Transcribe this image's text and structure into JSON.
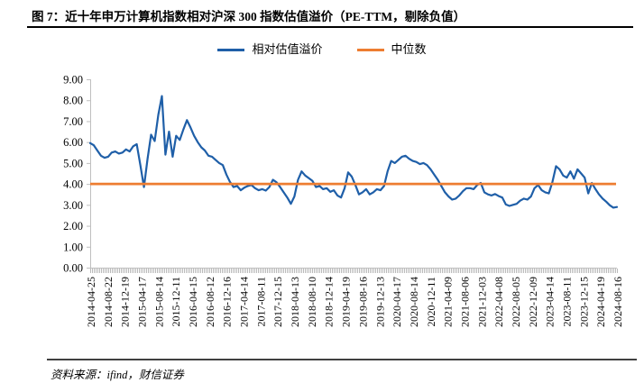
{
  "figure": {
    "title": "图 7：近十年申万计算机指数相对沪深 300 指数估值溢价（PE-TTM，剔除负值）",
    "source_note": "资料来源：ifind，财信证券"
  },
  "legend": [
    {
      "label": "相对估值溢价",
      "color": "#1F5FA8"
    },
    {
      "label": "中位数",
      "color": "#ED7D31"
    }
  ],
  "colors": {
    "series_blue": "#1F5FA8",
    "median_orange": "#ED7D31",
    "axis_gray": "#BFBFBF",
    "minor_tick_gray": "#B3B3B3",
    "text_black": "#000000"
  },
  "chart_data": {
    "type": "line",
    "title": "近十年申万计算机指数相对沪深300指数估值溢价（PE-TTM，剔除负值）",
    "xlabel": "",
    "ylabel": "",
    "ylim": [
      0,
      9
    ],
    "grid": false,
    "legend_position": "top",
    "y_tick_labels": [
      "0.00",
      "1.00",
      "2.00",
      "3.00",
      "4.00",
      "5.00",
      "6.00",
      "7.00",
      "8.00",
      "9.00"
    ],
    "x_tick_labels": [
      "2014-04-25",
      "2014-08-22",
      "2014-12-19",
      "2015-04-17",
      "2015-08-14",
      "2015-12-11",
      "2016-04-15",
      "2016-08-12",
      "2016-12-16",
      "2017-04-14",
      "2017-08-11",
      "2017-12-15",
      "2018-04-13",
      "2018-08-10",
      "2018-12-14",
      "2019-04-19",
      "2019-08-16",
      "2019-12-13",
      "2020-04-17",
      "2020-08-14",
      "2020-12-11",
      "2021-04-09",
      "2021-08-06",
      "2021-12-03",
      "2022-04-08",
      "2022-08-05",
      "2022-12-09",
      "2023-04-14",
      "2023-08-11",
      "2023-12-15",
      "2024-04-19",
      "2024-08-16"
    ],
    "x_label_rotation": -90,
    "median_value": 4.0,
    "series": [
      {
        "name": "相对估值溢价",
        "color": "#1F5FA8",
        "values": [
          5.95,
          5.85,
          5.6,
          5.35,
          5.25,
          5.3,
          5.5,
          5.55,
          5.45,
          5.5,
          5.65,
          5.55,
          5.8,
          5.9,
          4.9,
          3.85,
          5.2,
          6.35,
          6.05,
          7.3,
          8.2,
          5.4,
          6.5,
          5.3,
          6.3,
          6.1,
          6.6,
          7.05,
          6.7,
          6.3,
          6.0,
          5.75,
          5.6,
          5.35,
          5.3,
          5.15,
          5.0,
          4.9,
          4.45,
          4.1,
          3.85,
          3.9,
          3.7,
          3.82,
          3.9,
          3.95,
          3.8,
          3.7,
          3.75,
          3.68,
          3.85,
          4.2,
          4.08,
          3.85,
          3.6,
          3.35,
          3.05,
          3.4,
          4.2,
          4.6,
          4.4,
          4.28,
          4.15,
          3.85,
          3.9,
          3.75,
          3.8,
          3.62,
          3.7,
          3.45,
          3.35,
          3.8,
          4.55,
          4.35,
          3.95,
          3.5,
          3.6,
          3.75,
          3.5,
          3.6,
          3.75,
          3.7,
          3.9,
          4.6,
          5.1,
          5.0,
          5.15,
          5.3,
          5.35,
          5.2,
          5.1,
          5.05,
          4.95,
          5.0,
          4.9,
          4.7,
          4.45,
          4.2,
          3.9,
          3.6,
          3.4,
          3.25,
          3.3,
          3.45,
          3.65,
          3.8,
          3.8,
          3.75,
          3.95,
          4.05,
          3.6,
          3.5,
          3.45,
          3.52,
          3.42,
          3.35,
          3.02,
          2.95,
          3.0,
          3.05,
          3.2,
          3.3,
          3.25,
          3.4,
          3.8,
          3.95,
          3.7,
          3.6,
          3.55,
          4.1,
          4.85,
          4.7,
          4.4,
          4.3,
          4.6,
          4.25,
          4.7,
          4.5,
          4.3,
          3.55,
          4.05,
          3.75,
          3.5,
          3.3,
          3.15,
          2.98,
          2.87,
          2.9
        ]
      },
      {
        "name": "中位数",
        "color": "#ED7D31",
        "constant_value": 4.0
      }
    ]
  }
}
